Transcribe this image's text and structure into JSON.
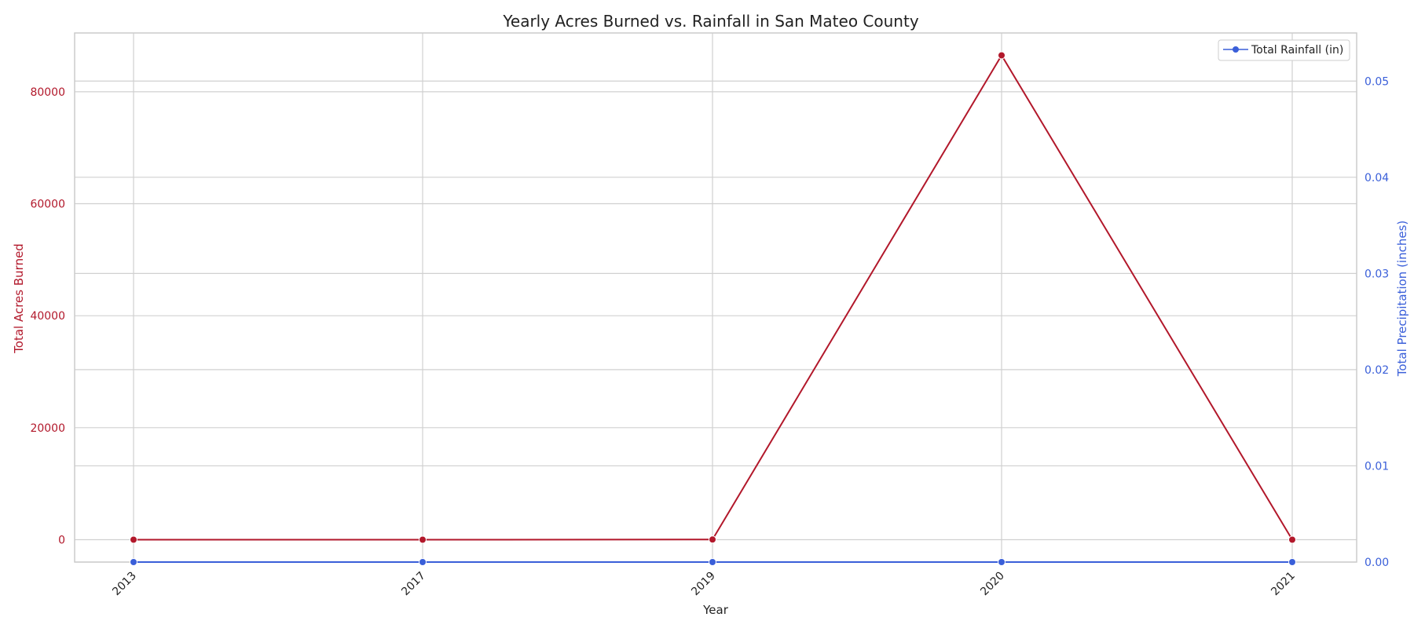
{
  "chart_data": {
    "type": "line",
    "title": "Yearly Acres Burned vs. Rainfall in San Mateo County",
    "xlabel": "Year",
    "categories": [
      "2013",
      "2017",
      "2019",
      "2020",
      "2021"
    ],
    "series": [
      {
        "values": [
          0,
          0,
          20,
          86509,
          0
        ],
        "axis": "left",
        "color": "#b2182b"
      },
      {
        "name": "Total Rainfall (in)",
        "values": [
          0,
          0,
          0,
          0,
          0
        ],
        "axis": "right",
        "color": "#3a5fd9"
      }
    ],
    "y_left": {
      "label": "Total Acres Burned",
      "range": [
        -4000,
        90500
      ],
      "ticks": [
        "0",
        "20000",
        "40000",
        "60000",
        "80000"
      ],
      "tick_values": [
        0,
        20000,
        40000,
        60000,
        80000
      ],
      "color": "#b2182b"
    },
    "y_right": {
      "label": "Total Precipitation (inches)",
      "range": [
        0,
        0.055
      ],
      "ticks": [
        "0.00",
        "0.01",
        "0.02",
        "0.03",
        "0.04",
        "0.05"
      ],
      "tick_values": [
        0,
        0.01,
        0.02,
        0.03,
        0.04,
        0.05
      ],
      "color": "#3a5fd9"
    },
    "grid": true,
    "legend_position": "top-right"
  }
}
